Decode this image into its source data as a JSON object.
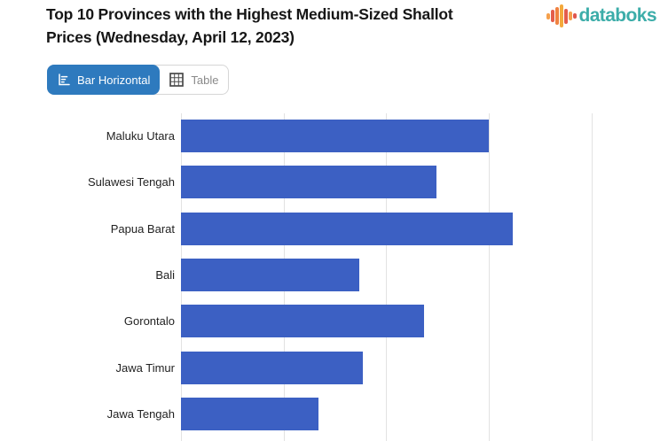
{
  "header": {
    "title": {
      "full": "Top 10 Provinces with the Highest Medium-Sized Shallot Prices (Wednesday, April 12, 2023)",
      "line1": "Top 10 Provinces with the Highest Medium-Sized Shallot",
      "line2": "Prices (Wednesday, April 12, 2023)"
    },
    "brand": {
      "name": "databoks",
      "text_color": "#3cada9",
      "icon_bar_colors": [
        "#f5a04c",
        "#e45d4b",
        "#f08140",
        "#f4a93c",
        "#e45d4b",
        "#f5a04c",
        "#e0564e"
      ],
      "icon_bar_heights": [
        7,
        14,
        20,
        26,
        17,
        10,
        6
      ]
    }
  },
  "toolbar": {
    "view_toggle": [
      {
        "label": "Bar Horizontal",
        "icon": "bar-horizontal-chart-icon",
        "active": true,
        "bg": "#2e7abe",
        "text_color": "#ffffff"
      },
      {
        "label": "Table",
        "icon": "table-grid-icon",
        "active": false,
        "bg": "#ffffff",
        "text_color": "#8a8a8a"
      }
    ]
  },
  "chart_data": {
    "type": "bar",
    "orientation": "horizontal",
    "title": "Top 10 Provinces with the Highest Medium-Sized Shallot Prices (Wednesday, April 12, 2023)",
    "categories": [
      "Maluku Utara",
      "Sulawesi Tengah",
      "Papua Barat",
      "Bali",
      "Gorontalo",
      "Jawa Timur",
      "Jawa Tengah"
    ],
    "values": [
      3.0,
      2.49,
      3.24,
      1.74,
      2.37,
      1.77,
      1.34
    ],
    "value_scale": "relative gridline units; x-axis tick labels are cropped out of the screenshot",
    "xlim": [
      0,
      4.75
    ],
    "xlabel": "",
    "ylabel": "",
    "grid": true,
    "legend": false,
    "bar_color": "#3c60c3",
    "gridline_color": "#e2e2e2",
    "crop_note": "Only 7 of the top 10 bars are visible; the bottom of the chart and axis labels are cut off."
  }
}
